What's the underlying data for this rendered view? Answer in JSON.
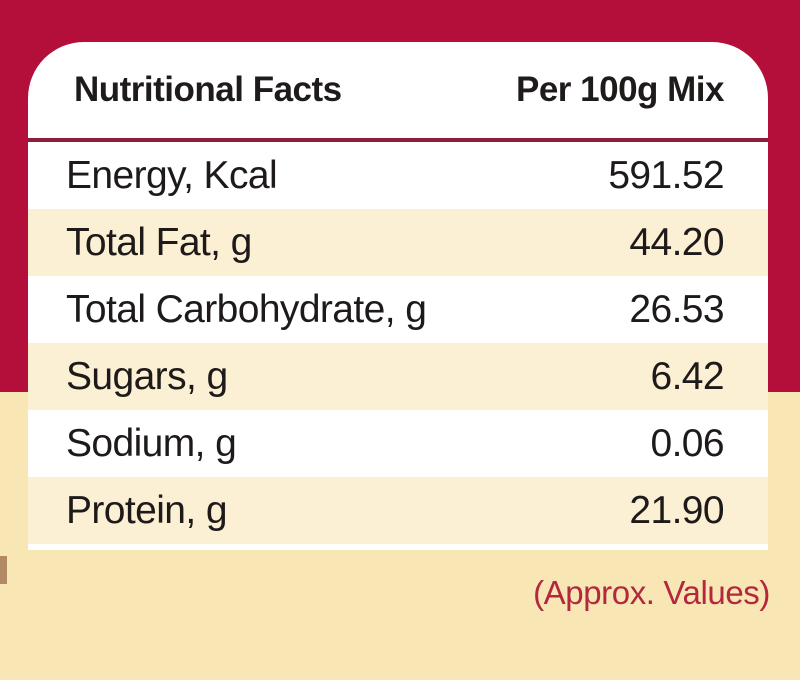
{
  "colors": {
    "background_top": "#b40f3b",
    "background_bottom": "#f8e6b4",
    "card_background": "#ffffff",
    "alternate_row": "#fbefd4",
    "text": "#1e1a1a",
    "footnote": "#b3283f"
  },
  "table": {
    "header": {
      "left": "Nutritional Facts",
      "right": "Per 100g Mix"
    },
    "rows": [
      {
        "label": "Energy, Kcal",
        "value": "591.52"
      },
      {
        "label": "Total Fat, g",
        "value": "44.20"
      },
      {
        "label": "Total Carbohydrate, g",
        "value": "26.53"
      },
      {
        "label": "Sugars, g",
        "value": "6.42"
      },
      {
        "label": "Sodium, g",
        "value": "0.06"
      },
      {
        "label": "Protein, g",
        "value": "21.90"
      }
    ]
  },
  "footnote": "(Approx. Values)"
}
